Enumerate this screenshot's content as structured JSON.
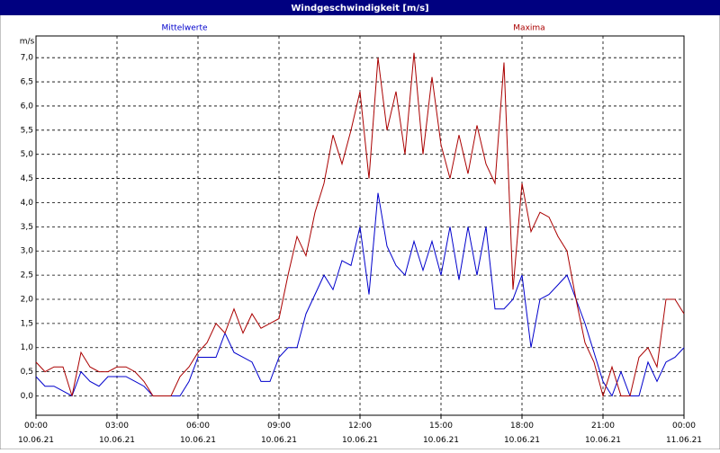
{
  "chart_data": {
    "type": "line",
    "title": "Windgeschwindigkeit [m/s]",
    "y_label": "m/s",
    "xlim": [
      0,
      1440
    ],
    "ylim": [
      -0.4,
      7.45
    ],
    "xticks": [
      {
        "value": 0,
        "label": "00:00 10.06.21"
      },
      {
        "value": 180,
        "label": "03:00 10.06.21"
      },
      {
        "value": 360,
        "label": "06:00 10.06.21"
      },
      {
        "value": 540,
        "label": "09:00 10.06.21"
      },
      {
        "value": 720,
        "label": "12:00 10.06.21"
      },
      {
        "value": 900,
        "label": "15:00 10.06.21"
      },
      {
        "value": 1080,
        "label": "18:00 10.06.21"
      },
      {
        "value": 1260,
        "label": "21:00 10.06.21"
      },
      {
        "value": 1440,
        "label": "00:00 11.06.21"
      }
    ],
    "yticks": [
      {
        "value": 0,
        "label": "0,0"
      },
      {
        "value": 0.5,
        "label": "0,5"
      },
      {
        "value": 1,
        "label": "1,0"
      },
      {
        "value": 1.5,
        "label": "1,5"
      },
      {
        "value": 2,
        "label": "2,0"
      },
      {
        "value": 2.5,
        "label": "2,5"
      },
      {
        "value": 3,
        "label": "3,0"
      },
      {
        "value": 3.5,
        "label": "3,5"
      },
      {
        "value": 4,
        "label": "4,0"
      },
      {
        "value": 4.5,
        "label": "4,5"
      },
      {
        "value": 5,
        "label": "5,0"
      },
      {
        "value": 5.5,
        "label": "5,5"
      },
      {
        "value": 6,
        "label": "6,0"
      },
      {
        "value": 6.5,
        "label": "6,5"
      },
      {
        "value": 7,
        "label": "7,0"
      }
    ],
    "grid": true,
    "x": [
      0,
      20,
      40,
      60,
      80,
      100,
      120,
      140,
      160,
      180,
      200,
      220,
      240,
      260,
      280,
      300,
      320,
      340,
      360,
      380,
      400,
      420,
      440,
      460,
      480,
      500,
      520,
      540,
      560,
      580,
      600,
      620,
      640,
      660,
      680,
      700,
      720,
      740,
      760,
      780,
      800,
      820,
      840,
      860,
      880,
      900,
      920,
      940,
      960,
      980,
      1000,
      1020,
      1040,
      1060,
      1080,
      1100,
      1120,
      1140,
      1160,
      1180,
      1200,
      1220,
      1240,
      1260,
      1280,
      1300,
      1320,
      1340,
      1360,
      1380,
      1400,
      1420,
      1440
    ],
    "series": [
      {
        "name": "Mittelwerte",
        "color": "#0000cc",
        "values": [
          0.4,
          0.2,
          0.2,
          0.1,
          0.0,
          0.5,
          0.3,
          0.2,
          0.4,
          0.4,
          0.4,
          0.3,
          0.2,
          0.0,
          0.0,
          0.0,
          0.0,
          0.3,
          0.8,
          0.8,
          0.8,
          1.3,
          0.9,
          0.8,
          0.7,
          0.3,
          0.3,
          0.8,
          1.0,
          1.0,
          1.7,
          2.1,
          2.5,
          2.2,
          2.8,
          2.7,
          3.5,
          2.1,
          4.2,
          3.1,
          2.7,
          2.5,
          3.2,
          2.6,
          3.2,
          2.5,
          3.5,
          2.4,
          3.5,
          2.5,
          3.5,
          1.8,
          1.8,
          2.0,
          2.5,
          1.0,
          2.0,
          2.1,
          2.3,
          2.5,
          2.0,
          1.5,
          0.9,
          0.3,
          0.0,
          0.5,
          0.0,
          0.0,
          0.7,
          0.3,
          0.7,
          0.8,
          1.0
        ]
      },
      {
        "name": "Maxima",
        "color": "#aa0000",
        "values": [
          0.7,
          0.5,
          0.6,
          0.6,
          0.0,
          0.9,
          0.6,
          0.5,
          0.5,
          0.6,
          0.6,
          0.5,
          0.3,
          0.0,
          0.0,
          0.0,
          0.4,
          0.6,
          0.9,
          1.1,
          1.5,
          1.3,
          1.8,
          1.3,
          1.7,
          1.4,
          1.5,
          1.6,
          2.5,
          3.3,
          2.9,
          3.8,
          4.4,
          5.4,
          4.8,
          5.5,
          6.3,
          4.5,
          7.0,
          5.5,
          6.3,
          5.0,
          7.1,
          5.0,
          6.6,
          5.2,
          4.5,
          5.4,
          4.6,
          5.6,
          4.8,
          4.4,
          6.9,
          2.2,
          4.4,
          3.4,
          3.8,
          3.7,
          3.3,
          3.0,
          2.0,
          1.1,
          0.7,
          0.0,
          0.6,
          0.0,
          0.0,
          0.8,
          1.0,
          0.6,
          2.0,
          2.0,
          1.7
        ]
      }
    ]
  }
}
